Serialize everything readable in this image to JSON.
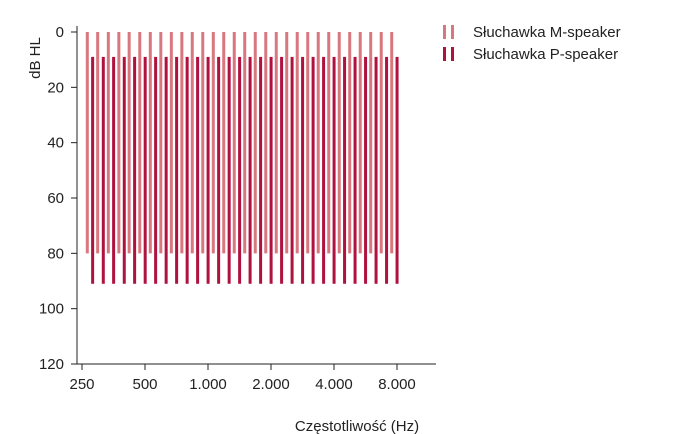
{
  "chart_data": {
    "type": "bar",
    "xlabel": "Częstotliwość (Hz)",
    "ylabel": "dB HL",
    "x_tick_labels": [
      "250",
      "500",
      "1.000",
      "2.000",
      "4.000",
      "8.000"
    ],
    "x_ticks_hz": [
      250,
      500,
      1000,
      2000,
      4000,
      8000
    ],
    "y_ticks": [
      0,
      20,
      40,
      60,
      80,
      100,
      120
    ],
    "ylim": [
      0,
      120
    ],
    "y_reversed": true,
    "x_scale": "log",
    "legend_position": "top-right",
    "series": [
      {
        "name": "Słuchawka M-speaker",
        "color": "#d9777f",
        "low": 0,
        "high": 80,
        "frequencies_hz": [
          265,
          297,
          334,
          375,
          420,
          472,
          530,
          595,
          668,
          750,
          841,
          944,
          1060,
          1189,
          1335,
          1498,
          1682,
          1888,
          2119,
          2378,
          2669,
          2996,
          3363,
          3775,
          4237,
          4755,
          5338,
          5991,
          6725,
          7548
        ]
      },
      {
        "name": "Słuchawka P-speaker",
        "color": "#b0123f",
        "low": 9,
        "high": 91,
        "frequencies_hz": [
          281,
          316,
          354,
          398,
          446,
          501,
          562,
          631,
          708,
          795,
          892,
          1001,
          1124,
          1262,
          1416,
          1589,
          1784,
          2002,
          2247,
          2522,
          2831,
          3178,
          3567,
          4003,
          4493,
          5043,
          5661,
          6354,
          7132,
          8005
        ]
      }
    ]
  }
}
